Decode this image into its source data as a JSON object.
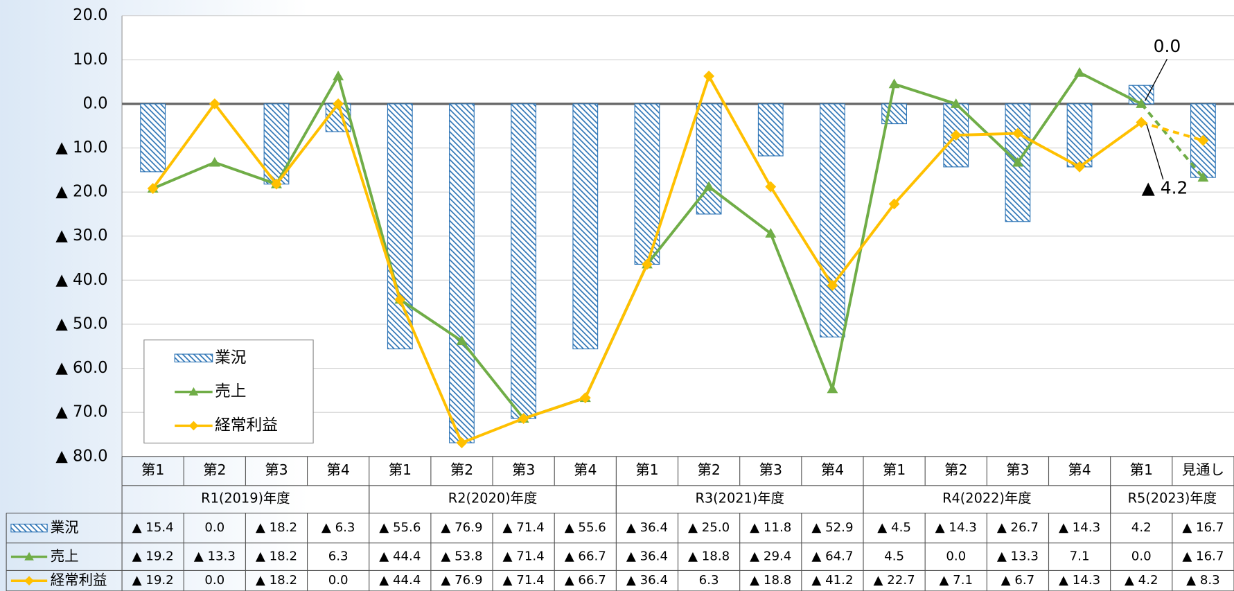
{
  "chart_data": {
    "type": "bar_line",
    "categories": [
      "第1",
      "第2",
      "第3",
      "第4",
      "第1",
      "第2",
      "第3",
      "第4",
      "第1",
      "第2",
      "第3",
      "第4",
      "第1",
      "第2",
      "第3",
      "第4",
      "第1",
      "見通し"
    ],
    "category_groups": [
      {
        "label": "R1(2019)年度",
        "size": 4
      },
      {
        "label": "R2(2020)年度",
        "size": 4
      },
      {
        "label": "R3(2021)年度",
        "size": 4
      },
      {
        "label": "R4(2022)年度",
        "size": 4
      },
      {
        "label": "R5(2023)年度",
        "size": 2
      }
    ],
    "series": [
      {
        "name": "業況",
        "type": "bar",
        "color": "#2e75b6",
        "values": [
          -15.4,
          0.0,
          -18.2,
          -6.3,
          -55.6,
          -76.9,
          -71.4,
          -55.6,
          -36.4,
          -25.0,
          -11.8,
          -52.9,
          -4.5,
          -14.3,
          -26.7,
          -14.3,
          4.2,
          -16.7
        ],
        "value_labels": [
          "▲ 15.4",
          "0.0",
          "▲ 18.2",
          "▲ 6.3",
          "▲ 55.6",
          "▲ 76.9",
          "▲ 71.4",
          "▲ 55.6",
          "▲ 36.4",
          "▲ 25.0",
          "▲ 11.8",
          "▲ 52.9",
          "▲ 4.5",
          "▲ 14.3",
          "▲ 26.7",
          "▲ 14.3",
          "4.2",
          "▲ 16.7"
        ]
      },
      {
        "name": "売上",
        "type": "line",
        "marker": "triangle",
        "color": "#70ad47",
        "values": [
          -19.2,
          -13.3,
          -18.2,
          6.3,
          -44.4,
          -53.8,
          -71.4,
          -66.7,
          -36.4,
          -18.8,
          -29.4,
          -64.7,
          4.5,
          0.0,
          -13.3,
          7.1,
          0.0,
          -16.7
        ],
        "value_labels": [
          "▲ 19.2",
          "▲ 13.3",
          "▲ 18.2",
          "6.3",
          "▲ 44.4",
          "▲ 53.8",
          "▲ 71.4",
          "▲ 66.7",
          "▲ 36.4",
          "▲ 18.8",
          "▲ 29.4",
          "▲ 64.7",
          "4.5",
          "0.0",
          "▲ 13.3",
          "7.1",
          "0.0",
          "▲ 16.7"
        ]
      },
      {
        "name": "経常利益",
        "type": "line",
        "marker": "diamond",
        "color": "#ffc000",
        "values": [
          -19.2,
          0.0,
          -18.2,
          0.0,
          -44.4,
          -76.9,
          -71.4,
          -66.7,
          -36.4,
          6.3,
          -18.8,
          -41.2,
          -22.7,
          -7.1,
          -6.7,
          -14.3,
          -4.2,
          -8.3
        ],
        "value_labels": [
          "▲ 19.2",
          "0.0",
          "▲ 18.2",
          "0.0",
          "▲ 44.4",
          "▲ 76.9",
          "▲ 71.4",
          "▲ 66.7",
          "▲ 36.4",
          "6.3",
          "▲ 18.8",
          "▲ 41.2",
          "▲ 22.7",
          "▲ 7.1",
          "▲ 6.7",
          "▲ 14.3",
          "▲ 4.2",
          "▲ 8.3"
        ]
      }
    ],
    "ylim": [
      -80,
      20
    ],
    "yticks": [
      {
        "value": 20,
        "label": "20.0"
      },
      {
        "value": 10,
        "label": "10.0"
      },
      {
        "value": 0,
        "label": "0.0"
      },
      {
        "value": -10,
        "label": "▲ 10.0"
      },
      {
        "value": -20,
        "label": "▲ 20.0"
      },
      {
        "value": -30,
        "label": "▲ 30.0"
      },
      {
        "value": -40,
        "label": "▲ 40.0"
      },
      {
        "value": -50,
        "label": "▲ 50.0"
      },
      {
        "value": -60,
        "label": "▲ 60.0"
      },
      {
        "value": -70,
        "label": "▲ 70.0"
      },
      {
        "value": -80,
        "label": "▲ 80.0"
      }
    ],
    "grid": true,
    "legend": "lower left",
    "annotations": [
      {
        "text": "0.0"
      },
      {
        "text": "▲ 4.2"
      }
    ]
  }
}
